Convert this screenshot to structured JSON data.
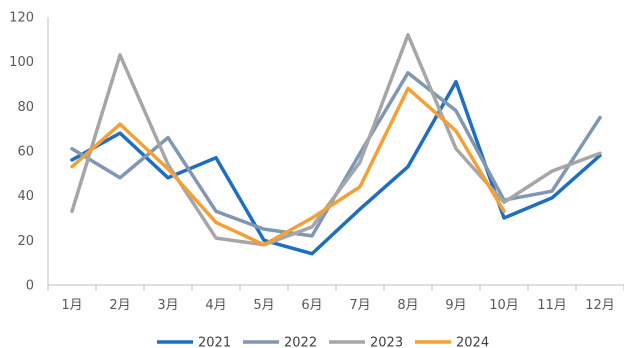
{
  "chart_data": {
    "type": "line",
    "title": "",
    "xlabel": "",
    "ylabel": "",
    "categories": [
      "1月",
      "2月",
      "3月",
      "4月",
      "5月",
      "6月",
      "7月",
      "8月",
      "9月",
      "10月",
      "11月",
      "12月"
    ],
    "ylim": [
      0,
      120
    ],
    "yticks": [
      "0",
      "20",
      "40",
      "60",
      "80",
      "100",
      "120"
    ],
    "grid": false,
    "legend_position": "bottom",
    "series": [
      {
        "name": "2021",
        "color": "#1f6fc1",
        "values": [
          56,
          68,
          48,
          57,
          20,
          14,
          34,
          53,
          91,
          30,
          39,
          58
        ]
      },
      {
        "name": "2022",
        "color": "#7f97b2",
        "values": [
          61,
          48,
          66,
          33,
          25,
          22,
          59,
          95,
          78,
          38,
          42,
          75
        ]
      },
      {
        "name": "2023",
        "color": "#a6a6a6",
        "values": [
          33,
          103,
          54,
          21,
          18,
          26,
          55,
          112,
          61,
          37,
          51,
          59
        ]
      },
      {
        "name": "2024",
        "color": "#f5a035",
        "values": [
          53,
          72,
          52,
          28,
          18,
          30,
          44,
          88,
          69,
          33,
          null,
          null
        ]
      }
    ]
  }
}
